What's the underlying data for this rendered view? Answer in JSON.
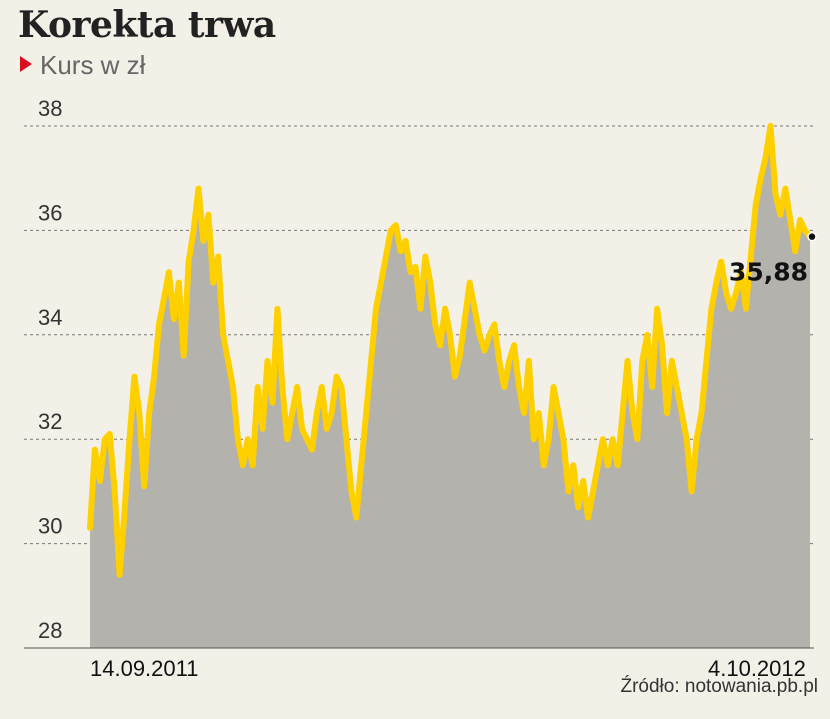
{
  "title": "Korekta trwa",
  "subtitle": "Kurs w zł",
  "source": "Źródło: notowania.pb.pl",
  "colors": {
    "background": "#f3f0e8",
    "line": "#ffd000",
    "area": "#b4b2ac",
    "marker": "#d7101f"
  },
  "chart_data": {
    "type": "area",
    "title": "Korekta trwa",
    "ylabel": "Kurs w zł",
    "ylim": [
      28,
      38
    ],
    "yticks": [
      "28",
      "30",
      "32",
      "34",
      "36",
      "38"
    ],
    "xlabels": [
      "14.09.2011",
      "4.10.2012"
    ],
    "last_value": 35.88,
    "last_value_label": "35,88",
    "grid": true,
    "values": [
      30.3,
      31.8,
      31.2,
      32.0,
      32.1,
      31.0,
      29.4,
      30.6,
      32.0,
      33.2,
      32.5,
      31.1,
      32.5,
      33.2,
      34.2,
      34.7,
      35.2,
      34.3,
      35.0,
      33.6,
      35.4,
      36.0,
      36.8,
      35.8,
      36.3,
      35.0,
      35.5,
      34.0,
      33.5,
      33.0,
      32.0,
      31.5,
      32.0,
      31.5,
      33.0,
      32.2,
      33.5,
      32.7,
      34.5,
      33.0,
      32.0,
      32.5,
      33.0,
      32.2,
      32.0,
      31.8,
      32.5,
      33.0,
      32.2,
      32.5,
      33.2,
      33.0,
      32.0,
      31.0,
      30.5,
      31.5,
      32.5,
      33.5,
      34.5,
      35.0,
      35.5,
      36.0,
      36.1,
      35.6,
      35.8,
      35.2,
      35.3,
      34.5,
      35.5,
      35.0,
      34.2,
      33.8,
      34.5,
      34.0,
      33.2,
      33.6,
      34.3,
      35.0,
      34.5,
      34.0,
      33.7,
      34.0,
      34.2,
      33.5,
      33.0,
      33.5,
      33.8,
      33.0,
      32.5,
      33.5,
      32.0,
      32.5,
      31.5,
      32.0,
      33.0,
      32.5,
      32.0,
      31.0,
      31.5,
      30.7,
      31.2,
      30.5,
      31.0,
      31.5,
      32.0,
      31.5,
      32.0,
      31.5,
      32.5,
      33.5,
      32.5,
      32.0,
      33.5,
      34.0,
      33.0,
      34.5,
      33.8,
      32.5,
      33.5,
      33.0,
      32.5,
      32.0,
      31.0,
      32.0,
      32.5,
      33.5,
      34.5,
      35.0,
      35.4,
      34.8,
      34.5,
      34.8,
      35.2,
      34.5,
      35.5,
      36.5,
      37.0,
      37.4,
      38.0,
      36.7,
      36.3,
      36.8,
      36.2,
      35.6,
      36.2,
      36.0,
      35.88
    ]
  }
}
